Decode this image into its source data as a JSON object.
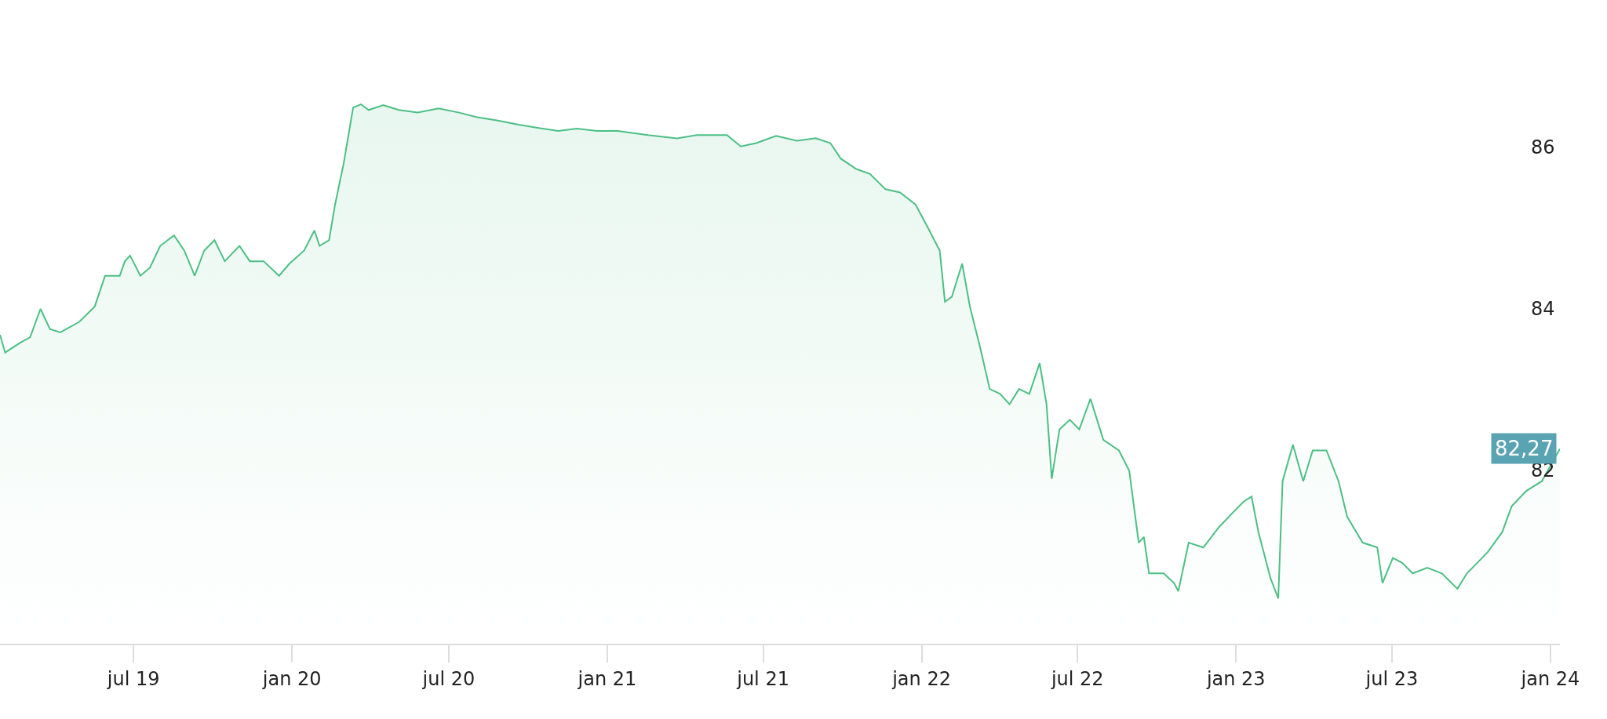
{
  "chart_data": {
    "type": "area",
    "x": [
      "2019-01-27",
      "2019-02-02",
      "2019-02-19",
      "2019-03-03",
      "2019-03-15",
      "2019-03-26",
      "2019-04-07",
      "2019-04-29",
      "2019-05-17",
      "2019-05-29",
      "2019-06-15",
      "2019-06-21",
      "2019-06-27",
      "2019-07-09",
      "2019-07-20",
      "2019-08-01",
      "2019-08-17",
      "2019-08-29",
      "2019-09-10",
      "2019-09-21",
      "2019-10-03",
      "2019-10-15",
      "2019-11-01",
      "2019-11-13",
      "2019-11-29",
      "2019-12-17",
      "2019-12-29",
      "2020-01-15",
      "2020-01-27",
      "2020-02-02",
      "2020-02-13",
      "2020-02-20",
      "2020-03-01",
      "2020-03-12",
      "2020-03-21",
      "2020-03-30",
      "2020-04-16",
      "2020-05-04",
      "2020-05-26",
      "2020-06-19",
      "2020-07-12",
      "2020-08-03",
      "2020-08-27",
      "2020-09-19",
      "2020-10-12",
      "2020-11-05",
      "2020-11-27",
      "2020-12-20",
      "2021-01-13",
      "2021-02-17",
      "2021-03-23",
      "2021-04-15",
      "2021-05-20",
      "2021-06-05",
      "2021-06-23",
      "2021-07-16",
      "2021-08-09",
      "2021-08-31",
      "2021-09-17",
      "2021-09-29",
      "2021-10-17",
      "2021-11-02",
      "2021-11-20",
      "2021-12-07",
      "2021-12-25",
      "2022-01-10",
      "2022-01-22",
      "2022-01-28",
      "2022-02-05",
      "2022-02-17",
      "2022-02-26",
      "2022-03-10",
      "2022-03-21",
      "2022-04-02",
      "2022-04-13",
      "2022-04-24",
      "2022-05-06",
      "2022-05-18",
      "2022-05-26",
      "2022-06-01",
      "2022-06-10",
      "2022-06-22",
      "2022-07-03",
      "2022-07-16",
      "2022-07-31",
      "2022-08-18",
      "2022-08-30",
      "2022-09-10",
      "2022-09-16",
      "2022-09-22",
      "2022-10-09",
      "2022-10-21",
      "2022-10-26",
      "2022-11-07",
      "2022-11-24",
      "2022-12-12",
      "2022-12-29",
      "2023-01-10",
      "2023-01-19",
      "2023-01-27",
      "2023-02-10",
      "2023-02-19",
      "2023-02-24",
      "2023-03-08",
      "2023-03-20",
      "2023-03-31",
      "2023-04-16",
      "2023-04-30",
      "2023-05-10",
      "2023-05-28",
      "2023-06-14",
      "2023-06-20",
      "2023-07-02",
      "2023-07-13",
      "2023-07-25",
      "2023-08-11",
      "2023-08-28",
      "2023-09-15",
      "2023-09-26",
      "2023-10-08",
      "2023-10-20",
      "2023-11-06",
      "2023-11-17",
      "2023-12-04",
      "2023-12-22",
      "2024-01-12"
    ],
    "series": [
      {
        "color": "#4cbf84",
        "values": [
          83.68,
          83.46,
          83.58,
          83.65,
          84.0,
          83.75,
          83.71,
          83.84,
          84.03,
          84.41,
          84.41,
          84.59,
          84.66,
          84.41,
          84.51,
          84.78,
          84.91,
          84.72,
          84.41,
          84.72,
          84.85,
          84.59,
          84.78,
          84.59,
          84.59,
          84.41,
          84.56,
          84.72,
          84.97,
          84.78,
          84.85,
          85.29,
          85.8,
          86.49,
          86.53,
          86.46,
          86.52,
          86.46,
          86.43,
          86.48,
          86.43,
          86.37,
          86.33,
          86.28,
          86.24,
          86.2,
          86.23,
          86.2,
          86.2,
          86.15,
          86.11,
          86.15,
          86.15,
          86.01,
          86.05,
          86.14,
          86.08,
          86.11,
          86.05,
          85.86,
          85.73,
          85.67,
          85.48,
          85.44,
          85.29,
          84.97,
          84.72,
          84.09,
          84.15,
          84.56,
          84.03,
          83.52,
          83.01,
          82.95,
          82.82,
          83.01,
          82.95,
          83.33,
          82.82,
          81.9,
          82.51,
          82.63,
          82.51,
          82.89,
          82.38,
          82.25,
          82.0,
          81.11,
          81.18,
          80.73,
          80.73,
          80.61,
          80.51,
          81.11,
          81.05,
          81.3,
          81.49,
          81.62,
          81.68,
          81.24,
          80.67,
          80.42,
          81.87,
          82.32,
          81.87,
          82.25,
          82.25,
          81.87,
          81.43,
          81.11,
          81.05,
          80.61,
          80.92,
          80.86,
          80.73,
          80.8,
          80.73,
          80.54,
          80.73,
          80.86,
          80.99,
          81.24,
          81.56,
          81.75,
          81.87,
          82.27
        ],
        "value_labels": [
          null,
          null,
          null,
          null,
          null,
          null,
          null,
          null,
          null,
          null,
          null,
          null,
          null,
          null,
          null,
          null,
          null,
          null,
          null,
          null,
          null,
          null,
          null,
          null,
          null,
          null,
          null,
          null,
          null,
          null,
          null,
          null,
          null,
          null,
          null,
          null,
          null,
          null,
          null,
          null,
          null,
          null,
          null,
          null,
          null,
          null,
          null,
          null,
          null,
          null,
          null,
          null,
          null,
          null,
          null,
          null,
          null,
          null,
          null,
          null,
          null,
          null,
          null,
          null,
          null,
          null,
          null,
          null,
          null,
          null,
          null,
          null,
          null,
          null,
          null,
          null,
          null,
          null,
          null,
          null,
          null,
          null,
          null,
          null,
          null,
          null,
          null,
          null,
          null,
          null,
          null,
          null,
          null,
          null,
          null,
          null,
          null,
          null,
          null,
          null,
          null,
          null,
          null,
          null,
          null,
          null,
          null,
          null,
          null,
          null,
          null,
          null,
          null,
          null,
          null,
          null,
          null,
          null,
          null,
          null,
          null,
          null,
          null,
          null,
          null,
          "82,27"
        ]
      }
    ],
    "xlim": [
      "2019-01-27",
      "2024-01-12"
    ],
    "xticks": [
      {
        "value": "2019-07-01",
        "label": "jul 19"
      },
      {
        "value": "2020-01-01",
        "label": "jan 20"
      },
      {
        "value": "2020-07-01",
        "label": "jul 20"
      },
      {
        "value": "2021-01-01",
        "label": "jan 21"
      },
      {
        "value": "2021-07-01",
        "label": "jul 21"
      },
      {
        "value": "2022-01-01",
        "label": "jan 22"
      },
      {
        "value": "2022-07-01",
        "label": "jul 22"
      },
      {
        "value": "2023-01-01",
        "label": "jan 23"
      },
      {
        "value": "2023-07-01",
        "label": "jul 23"
      },
      {
        "value": "2024-01-01",
        "label": "jan 24"
      }
    ],
    "ylim": [
      79.86,
      87.82
    ],
    "yticks": [
      82,
      84,
      86
    ],
    "marker": "none"
  }
}
